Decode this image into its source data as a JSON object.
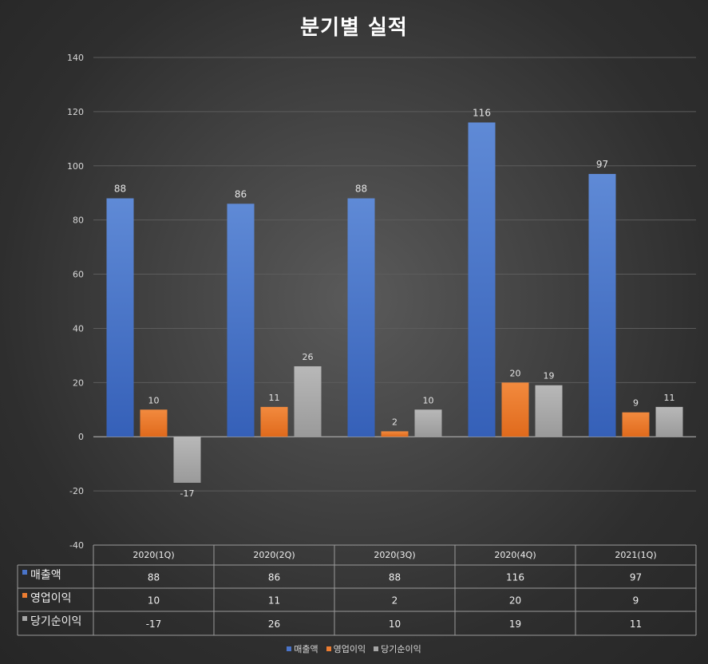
{
  "chart_data": {
    "type": "bar",
    "title": "분기별 실적",
    "categories": [
      "2020(1Q)",
      "2020(2Q)",
      "2020(3Q)",
      "2020(4Q)",
      "2021(1Q)"
    ],
    "series": [
      {
        "name": "매출액",
        "values": [
          88,
          86,
          88,
          116,
          97
        ],
        "color": "#4a74c9"
      },
      {
        "name": "영업이익",
        "values": [
          10,
          11,
          2,
          20,
          9
        ],
        "color": "#ed7d31"
      },
      {
        "name": "당기순이익",
        "values": [
          -17,
          26,
          10,
          19,
          11
        ],
        "color": "#a5a5a5"
      }
    ],
    "ylim": [
      -40,
      140
    ],
    "yticks": [
      -40,
      -20,
      0,
      20,
      40,
      60,
      80,
      100,
      120,
      140
    ],
    "xlabel": "",
    "ylabel": "",
    "grid": true,
    "data_table": true,
    "legend_position": "bottom"
  }
}
